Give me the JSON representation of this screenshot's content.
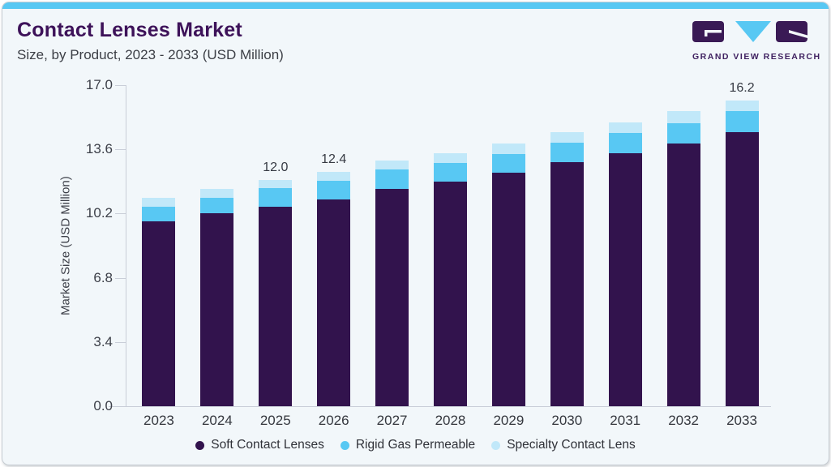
{
  "header": {
    "title": "Contact Lenses Market",
    "subtitle": "Size, by Product, 2023 - 2033 (USD Million)"
  },
  "brand": {
    "name": "GRAND VIEW RESEARCH"
  },
  "chart_data": {
    "type": "bar",
    "stacked": true,
    "title": "Contact Lenses Market Size, by Product, 2023 - 2033 (USD Million)",
    "categories": [
      "2023",
      "2024",
      "2025",
      "2026",
      "2027",
      "2028",
      "2029",
      "2030",
      "2031",
      "2032",
      "2033"
    ],
    "series": [
      {
        "name": "Soft Contact Lenses",
        "color": "#32134d",
        "values": [
          9.8,
          10.2,
          10.58,
          10.95,
          11.5,
          11.9,
          12.38,
          12.92,
          13.4,
          13.9,
          14.5
        ]
      },
      {
        "name": "Rigid Gas Permeable",
        "color": "#58c8f3",
        "values": [
          0.75,
          0.85,
          0.95,
          0.97,
          1.02,
          1.0,
          0.98,
          1.05,
          1.08,
          1.1,
          1.13
        ]
      },
      {
        "name": "Specialty Contact Lens",
        "color": "#c1e8f9",
        "values": [
          0.47,
          0.45,
          0.47,
          0.48,
          0.48,
          0.5,
          0.55,
          0.53,
          0.53,
          0.62,
          0.57
        ]
      }
    ],
    "totals": [
      11.0,
      11.5,
      12.0,
      12.4,
      13.0,
      13.4,
      13.9,
      14.5,
      15.0,
      15.6,
      16.2
    ],
    "bar_labels": [
      "",
      "",
      "12.0",
      "12.4",
      "",
      "",
      "",
      "",
      "",
      "",
      "16.2"
    ],
    "ylabel": "Market Size (USD Million)",
    "yticks": [
      "0.0",
      "3.4",
      "6.8",
      "10.2",
      "13.6",
      "17.0"
    ],
    "ylim": [
      0,
      17
    ],
    "grid": false,
    "legend_position": "bottom"
  },
  "colors": {
    "accent": "#58c8f3",
    "card_background": "#f2f7fa",
    "title": "#3d1259",
    "logo_purple": "#3a1a55",
    "logo_blue": "#58c8f3",
    "text": "#3d4049",
    "axis_line": "#c9ced8"
  }
}
